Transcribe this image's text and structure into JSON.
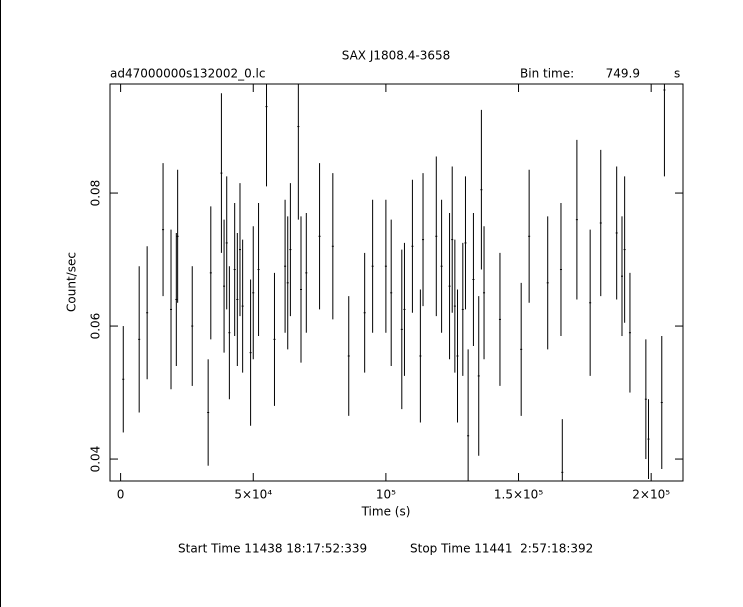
{
  "chart_data": {
    "type": "errorbar",
    "title": "SAX J1808.4-3658",
    "subtitle": "ad47000000s132002_0.lc",
    "bin_time_label": "Bin time:",
    "bin_time": 749.9,
    "bin_time_unit": "s",
    "xlabel": "Time (s)",
    "ylabel": "Count/sec",
    "footer": [
      "Start Time 11438 18:17:52:339",
      "Stop Time 11441  2:57:18:392"
    ],
    "color": "#000000",
    "xlim": [
      -4000,
      212000
    ],
    "ylim": [
      0.0367,
      0.0964
    ],
    "xticks": [
      0,
      {
        "value": 50000,
        "label": "5×10⁴"
      },
      {
        "value": 100000,
        "label": "10⁵"
      },
      {
        "value": 150000,
        "label": "1.5×10⁵"
      },
      {
        "value": 200000,
        "label": "2×10⁵"
      }
    ],
    "yticks": [
      0.04,
      0.06,
      0.08
    ],
    "x": [
      1000,
      7000,
      10000,
      16000,
      19000,
      21000,
      21500,
      27000,
      33000,
      34000,
      38000,
      39000,
      40000,
      41000,
      43000,
      44000,
      45000,
      46000,
      49000,
      50000,
      52000,
      55000,
      58000,
      62000,
      63000,
      64000,
      67000,
      68000,
      70000,
      75000,
      80000,
      86000,
      92000,
      95000,
      100000,
      102000,
      106000,
      107000,
      110000,
      113000,
      114000,
      119000,
      121000,
      124000,
      125000,
      126000,
      127000,
      129000,
      130000,
      131000,
      133000,
      135000,
      136000,
      137000,
      143000,
      151000,
      154000,
      161000,
      166000,
      166500,
      172000,
      177000,
      181000,
      187000,
      189000,
      190000,
      192000,
      198000,
      199000,
      204000,
      205000
    ],
    "values": [
      0.052,
      0.058,
      0.062,
      0.0745,
      0.0625,
      0.064,
      0.0735,
      0.06,
      0.047,
      0.068,
      0.083,
      0.066,
      0.0725,
      0.059,
      0.0685,
      0.064,
      0.0715,
      0.063,
      0.056,
      0.065,
      0.0685,
      0.093,
      0.058,
      0.069,
      0.0665,
      0.0715,
      0.09,
      0.0655,
      0.068,
      0.0735,
      0.072,
      0.0555,
      0.062,
      0.069,
      0.069,
      0.065,
      0.0595,
      0.0625,
      0.072,
      0.0555,
      0.073,
      0.0735,
      0.069,
      0.066,
      0.073,
      0.063,
      0.0555,
      0.0625,
      0.0725,
      0.0435,
      0.067,
      0.0525,
      0.0805,
      0.065,
      0.061,
      0.0565,
      0.0735,
      0.0665,
      0.0685,
      0.038,
      0.076,
      0.0635,
      0.0755,
      0.074,
      0.0675,
      0.0715,
      0.059,
      0.049,
      0.043,
      0.0485,
      0.0955
    ],
    "errors": [
      0.008,
      0.011,
      0.01,
      0.01,
      0.012,
      0.01,
      0.01,
      0.009,
      0.008,
      0.01,
      0.012,
      0.01,
      0.01,
      0.01,
      0.01,
      0.01,
      0.01,
      0.01,
      0.011,
      0.01,
      0.01,
      0.012,
      0.01,
      0.01,
      0.01,
      0.01,
      0.014,
      0.011,
      0.009,
      0.011,
      0.011,
      0.009,
      0.009,
      0.01,
      0.01,
      0.011,
      0.012,
      0.01,
      0.01,
      0.01,
      0.01,
      0.012,
      0.01,
      0.011,
      0.011,
      0.01,
      0.01,
      0.01,
      0.01,
      0.013,
      0.01,
      0.012,
      0.012,
      0.01,
      0.01,
      0.01,
      0.01,
      0.01,
      0.01,
      0.008,
      0.012,
      0.011,
      0.011,
      0.01,
      0.009,
      0.011,
      0.009,
      0.009,
      0.006,
      0.01,
      0.013
    ]
  }
}
